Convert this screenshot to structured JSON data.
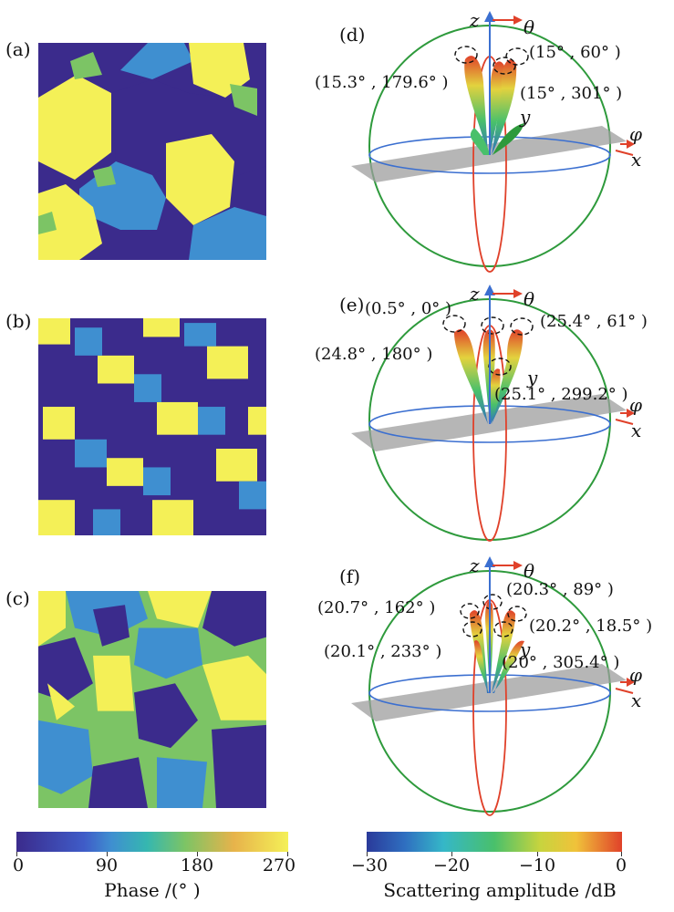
{
  "panels": {
    "a": "(a)",
    "b": "(b)",
    "c": "(c)",
    "d": "(d)",
    "e": "(e)",
    "f": "(f)"
  },
  "phase_colors": {
    "p0": "#3b2b8c",
    "p90": "#3f8fd0",
    "p180": "#7cc465",
    "p270": "#f4f057"
  },
  "axes": {
    "z": "z",
    "y": "y",
    "x": "x",
    "theta": "θ",
    "phi": "φ"
  },
  "pattern_d": {
    "beams": [
      "(15.3° , 179.6° )",
      "(15° , 60° )",
      "(15° , 301° )"
    ]
  },
  "pattern_e": {
    "beams": [
      "(0.5° , 0° )",
      "(25.4° , 61° )",
      "(24.8° , 180° )",
      "(25.1° , 299.2° )"
    ]
  },
  "pattern_f": {
    "beams": [
      "(20.3° , 89° )",
      "(20.7° , 162° )",
      "(20.2° , 18.5° )",
      "(20.1° , 233° )",
      "(20° , 305.4° )"
    ]
  },
  "colorbar_phase": {
    "title": "Phase /(° )",
    "ticks": [
      "0",
      "90",
      "180",
      "270"
    ]
  },
  "colorbar_amp": {
    "title": "Scattering amplitude /dB",
    "ticks": [
      "−30",
      "−20",
      "−10",
      "0"
    ]
  }
}
